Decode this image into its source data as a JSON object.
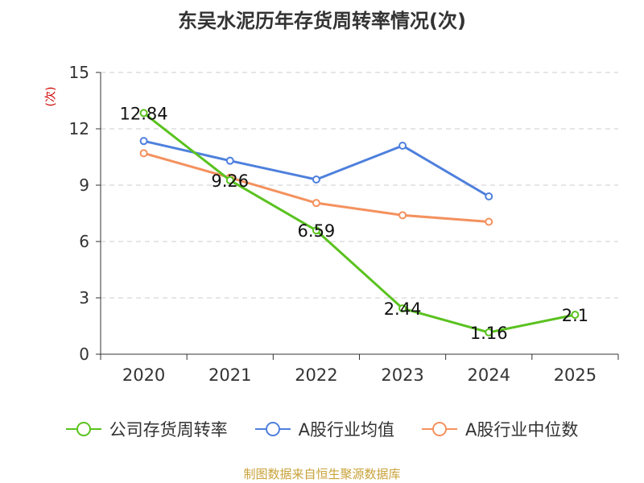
{
  "title": "东吴水泥历年存货周转率情况(次)",
  "footer": "制图数据来自恒生聚源数据库",
  "chart_data": {
    "type": "line",
    "title": "东吴水泥历年存货周转率情况(次)",
    "ylabel": "(次)",
    "xlabel": "",
    "categories": [
      "2020",
      "2021",
      "2022",
      "2023",
      "2024",
      "2025"
    ],
    "ylim": [
      0,
      15
    ],
    "yticks": [
      0,
      3,
      6,
      9,
      12,
      15
    ],
    "grid": true,
    "legend_position": "bottom",
    "series": [
      {
        "name": "公司存货周转率",
        "color": "#5ac21f",
        "values": [
          12.84,
          9.26,
          6.59,
          2.44,
          1.16,
          2.1
        ],
        "labels": [
          "12.84",
          "9.26",
          "6.59",
          "2.44",
          "1.16",
          "2.1"
        ]
      },
      {
        "name": "A股行业均值",
        "color": "#4e80dd",
        "values": [
          11.35,
          10.3,
          9.3,
          11.1,
          8.4,
          null
        ]
      },
      {
        "name": "A股行业中位数",
        "color": "#f4915e",
        "values": [
          10.7,
          9.4,
          8.05,
          7.4,
          7.05,
          null
        ]
      }
    ]
  }
}
